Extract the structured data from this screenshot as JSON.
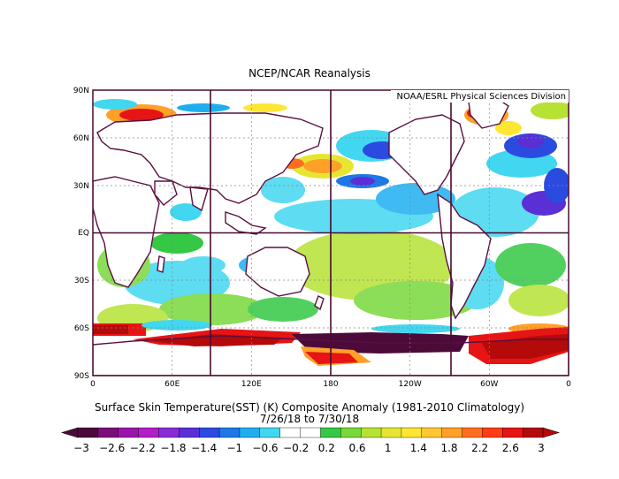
{
  "title": "NCEP/NCAR Reanalysis",
  "credit": "NOAA/ESRL Physical Sciences Division",
  "caption": {
    "line1": "Surface Skin Temperature(SST) (K) Composite Anomaly (1981-2010 Climatology)",
    "line2": "7/26/18  to 7/30/18"
  },
  "lat_labels": [
    "90N",
    "60N",
    "30N",
    "EQ",
    "30S",
    "60S",
    "90S"
  ],
  "lon_labels": [
    "0",
    "60E",
    "120E",
    "180",
    "120W",
    "60W",
    "0"
  ],
  "colorbar": {
    "labels": [
      "-3",
      "-2.6",
      "-2.2",
      "-1.8",
      "-1.4",
      "-1",
      "-0.6",
      "-0.2",
      "0.2",
      "0.6",
      "1",
      "1.4",
      "1.8",
      "2.2",
      "2.6",
      "3"
    ],
    "colors": [
      "#4b0a3a",
      "#7a0e78",
      "#9b16a8",
      "#b21ec8",
      "#8a2bd6",
      "#5b2fd6",
      "#2b4be0",
      "#1e78e6",
      "#1eaef0",
      "#41d7f0",
      "#ffffff",
      "#ffffff",
      "#34c844",
      "#78d83a",
      "#b6e234",
      "#e6e632",
      "#ffe632",
      "#ffc832",
      "#ffa028",
      "#ff6e1e",
      "#ff3c14",
      "#e61414",
      "#b40a0a"
    ]
  },
  "colors": {
    "land_outline": "#5a1040",
    "frame": "#4a0a30"
  }
}
